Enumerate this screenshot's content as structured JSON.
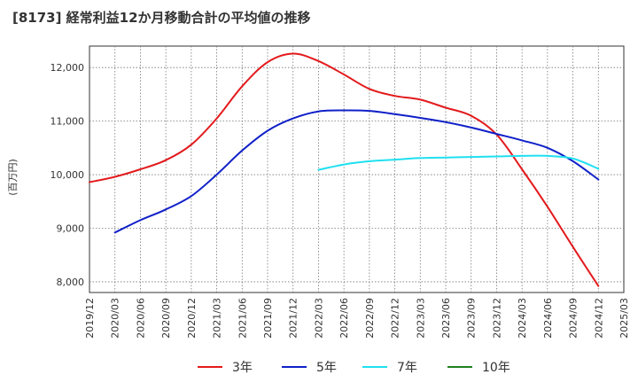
{
  "chart_data": {
    "type": "line",
    "title": "[8173]  経常利益12か月移動合計の平均値の推移",
    "ylabel": "(百万円)",
    "xlabel": "",
    "ylim": [
      7800,
      12400
    ],
    "yticks": [
      8000,
      9000,
      10000,
      11000,
      12000
    ],
    "ytick_labels": [
      "8,000",
      "9,000",
      "10,000",
      "11,000",
      "12,000"
    ],
    "x_categories": [
      "2019/12",
      "2020/03",
      "2020/06",
      "2020/09",
      "2020/12",
      "2021/03",
      "2021/06",
      "2021/09",
      "2021/12",
      "2022/03",
      "2022/06",
      "2022/09",
      "2022/12",
      "2023/03",
      "2023/06",
      "2023/09",
      "2023/12",
      "2024/03",
      "2024/06",
      "2024/09",
      "2024/12",
      "2025/03"
    ],
    "grid": true,
    "legend_position": "bottom",
    "series": [
      {
        "name": "3年",
        "color": "#e31a1c",
        "x": [
          "2019/12",
          "2020/03",
          "2020/06",
          "2020/09",
          "2020/12",
          "2021/03",
          "2021/06",
          "2021/09",
          "2021/12",
          "2022/03",
          "2022/06",
          "2022/09",
          "2022/12",
          "2023/03",
          "2023/06",
          "2023/09",
          "2023/12",
          "2024/03",
          "2024/06",
          "2024/09",
          "2024/12"
        ],
        "values": [
          9860,
          9960,
          10100,
          10270,
          10560,
          11050,
          11650,
          12100,
          12260,
          12120,
          11870,
          11600,
          11470,
          11400,
          11250,
          11100,
          10750,
          10100,
          9400,
          8650,
          7920
        ]
      },
      {
        "name": "5年",
        "color": "#1020c8",
        "x": [
          "2020/03",
          "2020/06",
          "2020/09",
          "2020/12",
          "2021/03",
          "2021/06",
          "2021/09",
          "2021/12",
          "2022/03",
          "2022/06",
          "2022/09",
          "2022/12",
          "2023/03",
          "2023/06",
          "2023/09",
          "2023/12",
          "2024/03",
          "2024/06",
          "2024/09",
          "2024/12"
        ],
        "values": [
          8920,
          9150,
          9350,
          9600,
          10000,
          10450,
          10820,
          11050,
          11180,
          11200,
          11190,
          11130,
          11060,
          10980,
          10880,
          10760,
          10640,
          10500,
          10250,
          9910
        ]
      },
      {
        "name": "7年",
        "color": "#20e0f0",
        "x": [
          "2022/03",
          "2022/06",
          "2022/09",
          "2022/12",
          "2023/03",
          "2023/06",
          "2023/09",
          "2023/12",
          "2024/03",
          "2024/06",
          "2024/09",
          "2024/12"
        ],
        "values": [
          10090,
          10190,
          10250,
          10280,
          10310,
          10320,
          10330,
          10340,
          10350,
          10350,
          10300,
          10110
        ]
      },
      {
        "name": "10年",
        "color": "#208020",
        "x": [],
        "values": []
      }
    ]
  }
}
